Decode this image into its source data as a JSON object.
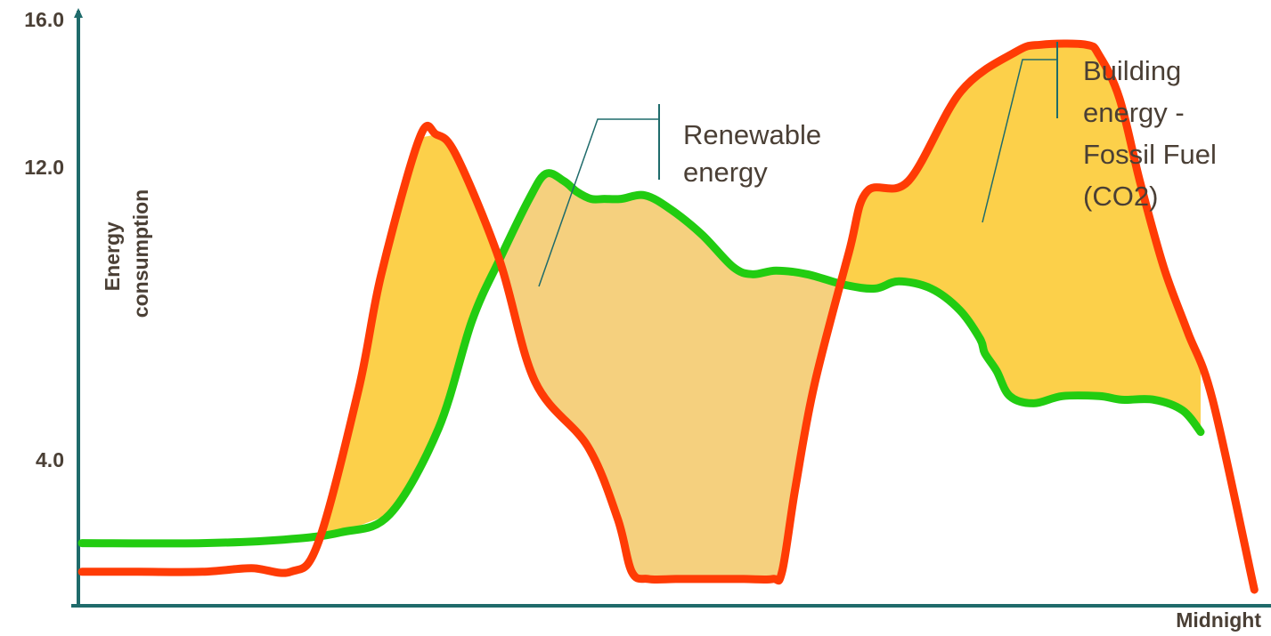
{
  "colors": {
    "axis": "#1f6b6b",
    "renewable": "#22cc11",
    "fossil": "#ff3b05",
    "fill_gold": "#fcd04a",
    "fill_tan": "#f5d07e",
    "text": "#4a3f35"
  },
  "chart_data": {
    "type": "area",
    "title": "",
    "ylabel": "Energy consumption",
    "xlabel": "Midnight",
    "yticks": [
      "16.0",
      "12.0",
      "4.0"
    ],
    "ytick_values": [
      16,
      12,
      4
    ],
    "ylim": [
      0,
      16.1
    ],
    "xlim": [
      0,
      1
    ],
    "legend": "none",
    "grid": false,
    "series": [
      {
        "name": "Renewable energy",
        "x": [
          0.003,
          0.104,
          0.173,
          0.22,
          0.261,
          0.302,
          0.33,
          0.353,
          0.378,
          0.392,
          0.407,
          0.418,
          0.43,
          0.441,
          0.455,
          0.475,
          0.497,
          0.523,
          0.549,
          0.565,
          0.585,
          0.611,
          0.643,
          0.668,
          0.688,
          0.715,
          0.739,
          0.756,
          0.76,
          0.77,
          0.781,
          0.801,
          0.825,
          0.856,
          0.875,
          0.902,
          0.926,
          0.941
        ],
        "y": [
          1.3,
          1.3,
          1.4,
          1.6,
          2.1,
          4.5,
          7.5,
          9.2,
          10.9,
          11.6,
          11.4,
          11.1,
          10.9,
          10.9,
          10.9,
          11.0,
          10.6,
          9.9,
          9.0,
          8.8,
          8.9,
          8.8,
          8.5,
          8.4,
          8.6,
          8.4,
          7.8,
          7.0,
          6.6,
          6.1,
          5.4,
          5.2,
          5.4,
          5.4,
          5.3,
          5.3,
          5.0,
          4.4
        ]
      },
      {
        "name": "Building energy - Fossil Fuel (CO2)",
        "x": [
          0.003,
          0.05,
          0.104,
          0.145,
          0.178,
          0.201,
          0.235,
          0.254,
          0.286,
          0.3,
          0.317,
          0.353,
          0.383,
          0.427,
          0.452,
          0.464,
          0.478,
          0.501,
          0.528,
          0.558,
          0.582,
          0.59,
          0.601,
          0.617,
          0.646,
          0.661,
          0.696,
          0.74,
          0.786,
          0.807,
          0.845,
          0.856,
          0.873,
          0.89,
          0.91,
          0.93,
          0.951,
          0.986
        ],
        "y": [
          0.5,
          0.5,
          0.5,
          0.6,
          0.5,
          1.3,
          5.6,
          8.8,
          12.6,
          12.7,
          12.1,
          9.2,
          5.8,
          4.0,
          2.0,
          0.5,
          0.3,
          0.3,
          0.3,
          0.3,
          0.3,
          0.5,
          2.8,
          5.7,
          9.4,
          11.1,
          11.4,
          13.9,
          15.0,
          15.2,
          15.2,
          14.9,
          13.7,
          11.4,
          9.0,
          7.2,
          5.3,
          0.0
        ]
      }
    ],
    "annotations": [
      {
        "text_lines": [
          "Renewable",
          "energy"
        ],
        "points_to": "Renewable energy"
      },
      {
        "text_lines": [
          "Building",
          "energy -",
          "Fossil Fuel",
          "(CO2)"
        ],
        "points_to": "Building energy - Fossil Fuel (CO2)"
      }
    ]
  }
}
